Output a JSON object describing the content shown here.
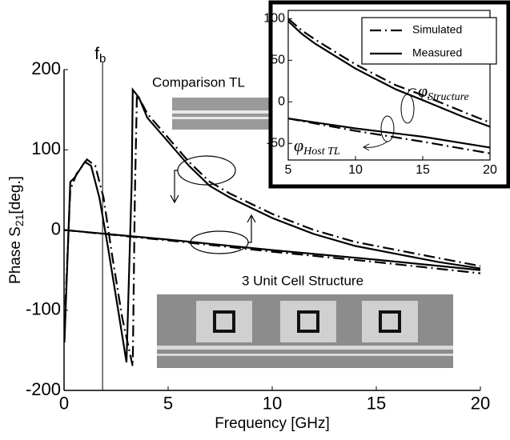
{
  "chart_data": [
    {
      "type": "line",
      "x_label": "Frequency [GHz]",
      "y_label": {
        "text": "Phase  S",
        "sub": "21",
        "suffix": "[deg.]"
      },
      "xlim": [
        0,
        20
      ],
      "ylim": [
        -200,
        200
      ],
      "xticks": [
        0,
        5,
        10,
        15,
        20
      ],
      "yticks": [
        -200,
        -100,
        0,
        100,
        200
      ],
      "marker_line": {
        "x": 1.85,
        "label": "f",
        "sub": "b"
      },
      "annotations": [
        "Comparison TL",
        "3 Unit Cell Structure"
      ],
      "series": [
        {
          "dash": "solid",
          "color": "#000000",
          "x": [
            0.02,
            0.3,
            0.5,
            1.0,
            1.3,
            1.7,
            2.1,
            2.6,
            3.0,
            3.25,
            3.3,
            3.6,
            4,
            5,
            6,
            7,
            8,
            10,
            12,
            14,
            16,
            18,
            20
          ],
          "values": [
            -140,
            60,
            65,
            85,
            80,
            40,
            -20,
            -100,
            -165,
            60,
            175,
            165,
            140,
            110,
            80,
            55,
            40,
            15,
            -5,
            -20,
            -30,
            -40,
            -48
          ]
        },
        {
          "dash": "dashdot",
          "color": "#000000",
          "x": [
            0.02,
            0.3,
            0.6,
            1.1,
            1.5,
            1.9,
            2.3,
            2.8,
            3.3,
            3.4,
            3.5,
            3.8,
            4,
            5,
            6,
            7,
            8,
            10,
            12,
            14,
            16,
            18,
            20
          ],
          "values": [
            -120,
            50,
            70,
            88,
            80,
            40,
            -30,
            -110,
            -170,
            40,
            168,
            155,
            145,
            115,
            85,
            60,
            45,
            20,
            0,
            -15,
            -25,
            -35,
            -45
          ]
        },
        {
          "dash": "solid",
          "color": "#000000",
          "x": [
            0,
            5,
            10,
            15,
            20
          ],
          "values": [
            0,
            -12,
            -25,
            -37,
            -50
          ]
        },
        {
          "dash": "dashdot",
          "color": "#000000",
          "x": [
            0,
            5,
            10,
            15,
            20
          ],
          "values": [
            0,
            -13,
            -27,
            -40,
            -54
          ]
        }
      ]
    },
    {
      "type": "line",
      "xlim": [
        5,
        20
      ],
      "ylim": [
        -70,
        110
      ],
      "xticks": [
        5,
        10,
        15,
        20
      ],
      "yticks": [
        -50,
        0,
        50,
        100
      ],
      "legend_loc": "upper right",
      "legend": [
        {
          "label": "Simulated",
          "dash": "dashdot"
        },
        {
          "label": "Measured",
          "dash": "solid"
        }
      ],
      "annotations": [
        {
          "symbol": "φ",
          "sub": "Structure"
        },
        {
          "symbol": "φ",
          "sub": "Host TL"
        }
      ],
      "series": [
        {
          "dash": "solid",
          "color": "#000000",
          "x": [
            5,
            6,
            7,
            8,
            10,
            13,
            15,
            18,
            20
          ],
          "values": [
            97,
            82,
            70,
            60,
            40,
            15,
            2,
            -18,
            -30
          ]
        },
        {
          "dash": "dashdot",
          "color": "#000000",
          "x": [
            5,
            6,
            7,
            8,
            10,
            13,
            15,
            18,
            20
          ],
          "values": [
            100,
            86,
            75,
            65,
            45,
            20,
            8,
            -12,
            -25
          ]
        },
        {
          "dash": "solid",
          "color": "#000000",
          "x": [
            5,
            10,
            15,
            20
          ],
          "values": [
            -20,
            -32,
            -42,
            -55
          ]
        },
        {
          "dash": "dashdot",
          "color": "#000000",
          "x": [
            5,
            10,
            15,
            20
          ],
          "values": [
            -20,
            -35,
            -48,
            -62
          ]
        }
      ]
    }
  ]
}
